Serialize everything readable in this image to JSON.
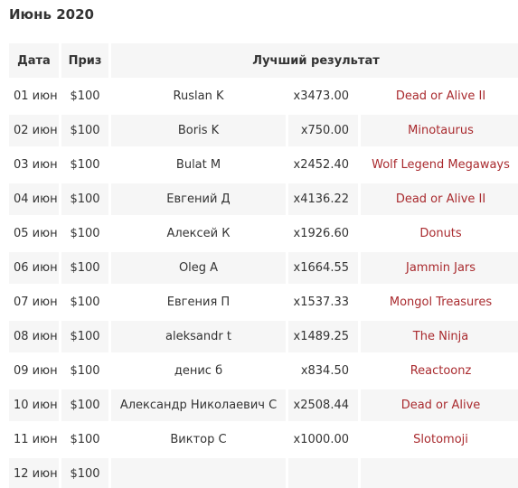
{
  "page": {
    "title": "Июнь 2020"
  },
  "table": {
    "headers": {
      "date": "Дата",
      "prize": "Приз",
      "best": "Лучший результат"
    },
    "rows": [
      {
        "date": "01 июн",
        "prize": "$100",
        "player": "Ruslan K",
        "multiplier": "x3473.00",
        "game": "Dead or Alive II"
      },
      {
        "date": "02 июн",
        "prize": "$100",
        "player": "Boris K",
        "multiplier": "x750.00",
        "game": "Minotaurus"
      },
      {
        "date": "03 июн",
        "prize": "$100",
        "player": "Bulat M",
        "multiplier": "x2452.40",
        "game": "Wolf Legend Megaways"
      },
      {
        "date": "04 июн",
        "prize": "$100",
        "player": "Евгений Д",
        "multiplier": "x4136.22",
        "game": "Dead or Alive II"
      },
      {
        "date": "05 июн",
        "prize": "$100",
        "player": "Алексей К",
        "multiplier": "x1926.60",
        "game": "Donuts"
      },
      {
        "date": "06 июн",
        "prize": "$100",
        "player": "Oleg A",
        "multiplier": "x1664.55",
        "game": "Jammin Jars"
      },
      {
        "date": "07 июн",
        "prize": "$100",
        "player": "Евгения П",
        "multiplier": "x1537.33",
        "game": "Mongol Treasures"
      },
      {
        "date": "08 июн",
        "prize": "$100",
        "player": "aleksandr t",
        "multiplier": "x1489.25",
        "game": "The Ninja"
      },
      {
        "date": "09 июн",
        "prize": "$100",
        "player": "денис б",
        "multiplier": "x834.50",
        "game": "Reactoonz"
      },
      {
        "date": "10 июн",
        "prize": "$100",
        "player": "Александр Николаевич С",
        "multiplier": "x2508.44",
        "game": "Dead or Alive"
      },
      {
        "date": "11 июн",
        "prize": "$100",
        "player": "Виктор С",
        "multiplier": "x1000.00",
        "game": "Slotomoji"
      },
      {
        "date": "12 июн",
        "prize": "$100",
        "player": "",
        "multiplier": "",
        "game": ""
      }
    ]
  },
  "colors": {
    "link": "#a92a2e",
    "row_alt": "#f6f6f6",
    "text": "#333333"
  }
}
